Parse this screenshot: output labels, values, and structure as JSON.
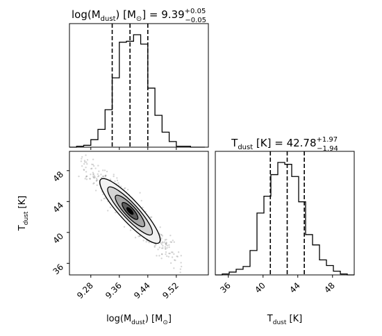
{
  "figure": {
    "title_mass": {
      "main": "log(M",
      "sub": "dust",
      "rest": ") [M",
      "sun": "⊙",
      "eq": "] = 9.39",
      "sup": "+0.05",
      "subv": "−0.05"
    },
    "title_temp": {
      "main": "T",
      "sub": "dust",
      "eq": " [K] = 42.78",
      "sup": "+1.97",
      "subv": "−1.94"
    },
    "xlabel_mass": {
      "main": "log(M",
      "sub": "dust",
      "rest": ") [M",
      "sun": "⊙",
      "end": "]"
    },
    "xlabel_temp": {
      "main": "T",
      "sub": "dust",
      "end": " [K]"
    },
    "ylabel_temp": {
      "main": "T",
      "sub": "dust",
      "end": " [K]"
    }
  },
  "chart_data": [
    {
      "type": "histogram",
      "panel": "mass-marginal",
      "x_range": [
        9.22,
        9.61
      ],
      "bins": [
        9.22,
        9.24,
        9.26,
        9.28,
        9.3,
        9.32,
        9.34,
        9.36,
        9.38,
        9.4,
        9.42,
        9.44,
        9.46,
        9.48,
        9.5,
        9.52,
        9.54,
        9.56,
        9.58,
        9.6
      ],
      "counts": [
        0,
        1,
        2,
        8,
        19,
        40,
        74,
        112,
        113,
        120,
        110,
        63,
        34,
        16,
        6,
        1,
        1,
        0,
        0
      ],
      "quantiles": [
        9.34,
        9.39,
        9.44
      ],
      "xticks": [
        "9.28",
        "9.36",
        "9.44",
        "9.52"
      ]
    },
    {
      "type": "histogram",
      "panel": "temperature-marginal",
      "x_range": [
        34.5,
        50.5
      ],
      "bins": [
        34.5,
        35.3,
        36.1,
        36.9,
        37.7,
        38.5,
        39.3,
        40.1,
        40.9,
        41.7,
        42.5,
        43.3,
        44.1,
        44.9,
        45.7,
        46.5,
        47.3,
        48.1,
        48.9,
        49.7,
        50.5
      ],
      "counts": [
        0,
        1,
        3,
        6,
        9,
        26,
        66,
        84,
        107,
        120,
        118,
        105,
        78,
        43,
        32,
        16,
        10,
        4,
        1,
        0
      ],
      "quantiles": [
        40.84,
        42.78,
        44.75
      ],
      "xticks": [
        "36",
        "40",
        "44",
        "48"
      ]
    },
    {
      "type": "contour",
      "panel": "joint-mass-temperature",
      "x_range": [
        9.22,
        9.61
      ],
      "y_range": [
        34.5,
        50.5
      ],
      "center": [
        9.39,
        42.78
      ],
      "correlation": -0.96,
      "xticks": [
        "9.28",
        "9.36",
        "9.44",
        "9.52"
      ],
      "yticks": [
        "36",
        "40",
        "44",
        "48"
      ]
    }
  ]
}
